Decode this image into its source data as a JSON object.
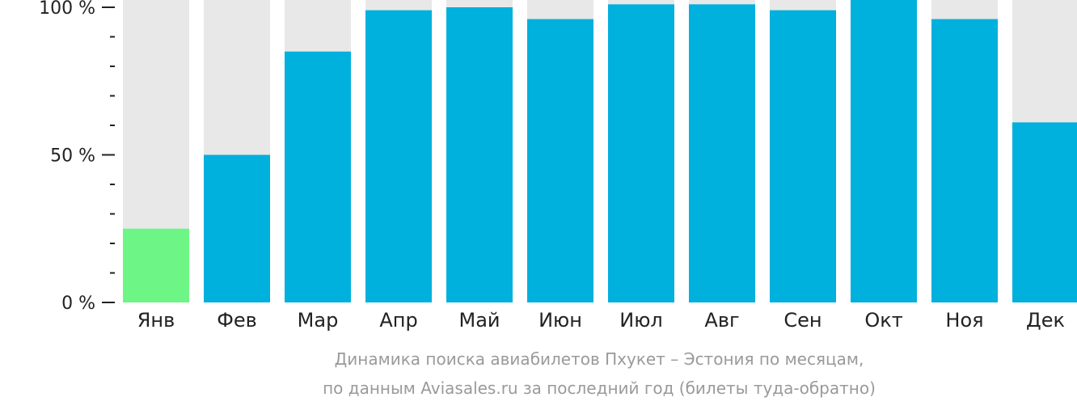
{
  "chart_data": {
    "type": "bar",
    "categories": [
      "Янв",
      "Фев",
      "Мар",
      "Апр",
      "Май",
      "Июн",
      "Июл",
      "Авг",
      "Сен",
      "Окт",
      "Ноя",
      "Дек"
    ],
    "values": [
      25,
      50,
      85,
      99,
      100,
      96,
      101,
      101,
      99,
      104,
      96,
      61
    ],
    "ylim": [
      0,
      100
    ],
    "ytick_labels": [
      "0 %",
      "50 %",
      "100 %"
    ],
    "yticks": [
      0,
      50,
      100
    ],
    "minor_ytick_step": 10,
    "highlight_index": 0,
    "grid": false,
    "colors": {
      "bar": "#00b0dd",
      "highlight_bar": "#6df585",
      "track": "#e8e8e8",
      "axis": "#222222",
      "caption": "#9a9a9a"
    }
  },
  "caption": {
    "line1": "Динамика поиска авиабилетов Пхукет – Эстония по месяцам,",
    "line2": "по данным Aviasales.ru за последний год (билеты туда-обратно)"
  }
}
